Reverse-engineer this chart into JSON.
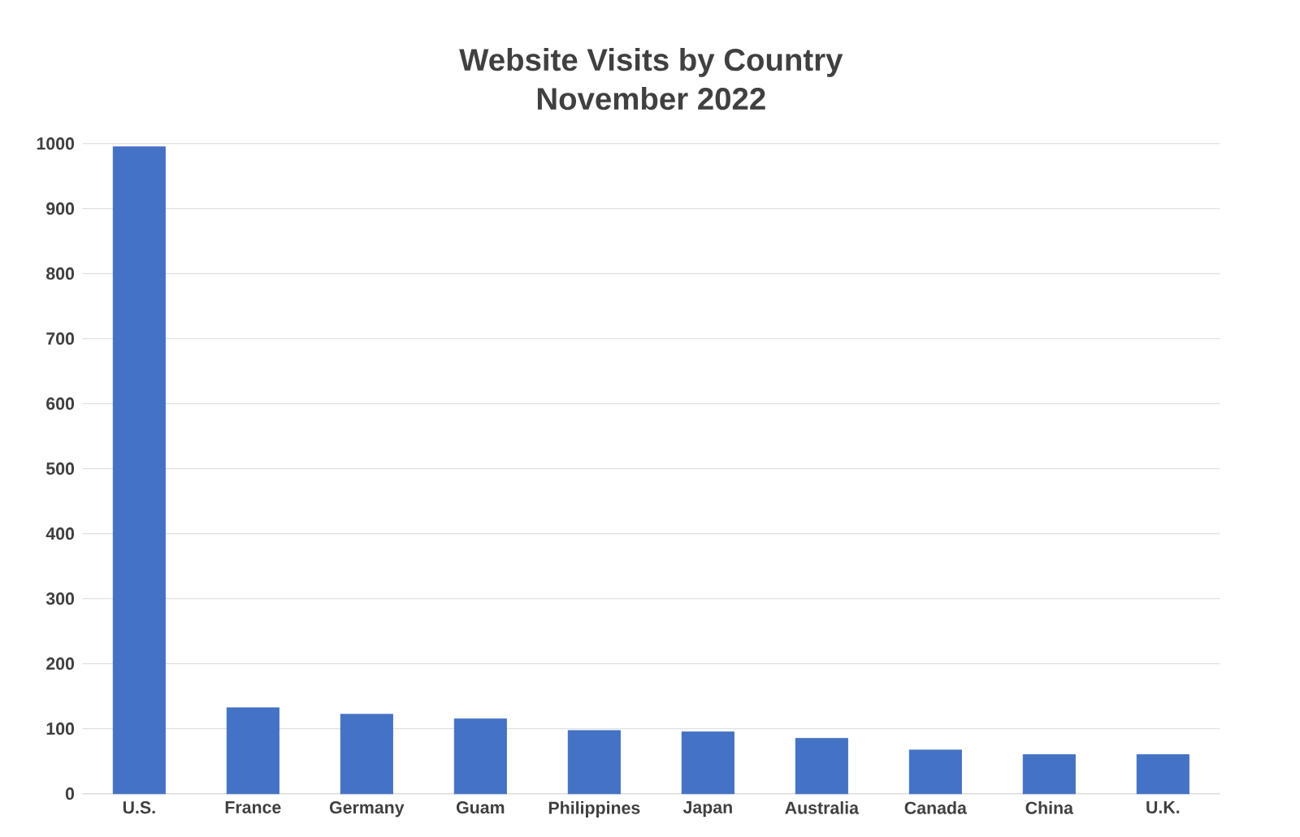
{
  "chart_data": {
    "type": "bar",
    "title": "Website Visits by Country",
    "subtitle": "November 2022",
    "categories": [
      "U.S.",
      "France",
      "Germany",
      "Guam",
      "Philippines",
      "Japan",
      "Australia",
      "Canada",
      "China",
      "U.K."
    ],
    "values": [
      995,
      132,
      122,
      115,
      97,
      95,
      85,
      67,
      60,
      60
    ],
    "color": "#4472c4",
    "ylim": [
      0,
      1000
    ],
    "yticks": [
      0,
      100,
      200,
      300,
      400,
      500,
      600,
      700,
      800,
      900,
      1000
    ],
    "grid": "y"
  }
}
